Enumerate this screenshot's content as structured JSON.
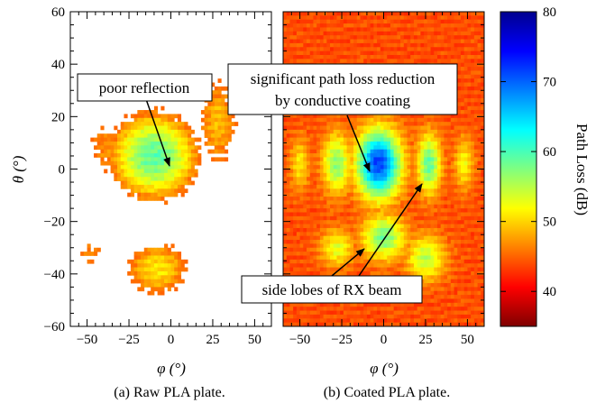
{
  "chart_data": [
    {
      "type": "heatmap",
      "caption": "(a) Raw PLA plate.",
      "xlabel": "φ (°)",
      "ylabel": "θ (°)",
      "xlim": [
        -60,
        60
      ],
      "ylim": [
        -60,
        60
      ],
      "xticks": [
        "−50",
        "−25",
        "0",
        "25",
        "50"
      ],
      "yticks": [
        "−60",
        "−40",
        "−20",
        "0",
        "20",
        "40",
        "60"
      ],
      "value_range": [
        35,
        80
      ],
      "low_values_blank": true,
      "blank_above": 70,
      "blobs": [
        {
          "phi": -10,
          "theta": 5,
          "sphi": 22,
          "stheta": 14,
          "value": 56
        },
        {
          "phi": 28,
          "theta": 18,
          "sphi": 12,
          "stheta": 18,
          "value": 66
        },
        {
          "phi": -38,
          "theta": 8,
          "sphi": 14,
          "stheta": 12,
          "value": 68
        },
        {
          "phi": -8,
          "theta": -38,
          "sphi": 18,
          "stheta": 10,
          "value": 64
        },
        {
          "phi": -48,
          "theta": -32,
          "sphi": 10,
          "stheta": 7,
          "value": 69
        }
      ],
      "annotations": [
        {
          "text": "poor reflection",
          "box_at": [
            -45,
            31
          ],
          "arrow_to": [
            0,
            0
          ]
        }
      ]
    },
    {
      "type": "heatmap",
      "caption": "(b) Coated PLA plate.",
      "xlabel": "φ (°)",
      "xlim": [
        -60,
        60
      ],
      "ylim": [
        -60,
        60
      ],
      "xticks": [
        "−50",
        "−25",
        "0",
        "25",
        "50"
      ],
      "value_range": [
        35,
        80
      ],
      "background_value": 71,
      "blobs": [
        {
          "phi": -3,
          "theta": 2,
          "sphi": 9,
          "stheta": 9,
          "value": 43
        },
        {
          "phi": 27,
          "theta": 2,
          "sphi": 5,
          "stheta": 8,
          "value": 56
        },
        {
          "phi": -28,
          "theta": 2,
          "sphi": 6,
          "stheta": 8,
          "value": 58
        },
        {
          "phi": 48,
          "theta": 2,
          "sphi": 4,
          "stheta": 7,
          "value": 63
        },
        {
          "phi": -50,
          "theta": 2,
          "sphi": 4,
          "stheta": 7,
          "value": 64
        },
        {
          "phi": 0,
          "theta": -26,
          "sphi": 9,
          "stheta": 6,
          "value": 57
        },
        {
          "phi": 25,
          "theta": -34,
          "sphi": 8,
          "stheta": 6,
          "value": 60
        },
        {
          "phi": -28,
          "theta": -30,
          "sphi": 7,
          "stheta": 5,
          "value": 62
        }
      ],
      "annotations": [
        {
          "text": [
            "significant path loss reduction",
            "by conductive coating"
          ],
          "arrow_to": [
            -5,
            0
          ]
        },
        {
          "text": "side lobes of RX beam",
          "arrow_to": [
            [
              25,
              -5
            ],
            [
              -25,
              -20
            ]
          ]
        }
      ]
    }
  ],
  "colorbar": {
    "label": "Path Loss (dB)",
    "min": 35,
    "max": 80,
    "ticks": [
      "40",
      "50",
      "60",
      "70",
      "80"
    ],
    "colormap": "jet-reversed"
  }
}
